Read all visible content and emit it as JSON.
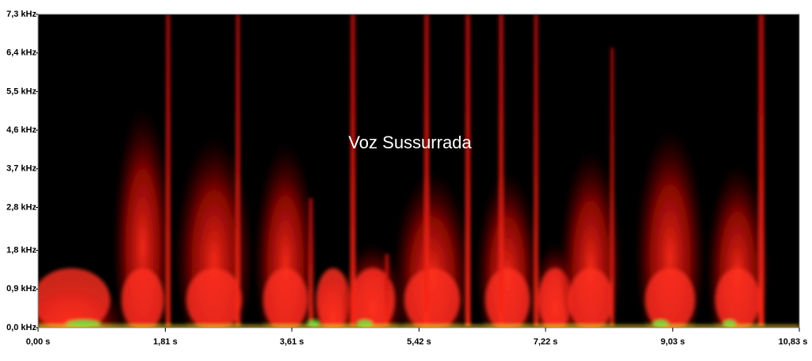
{
  "chart_data": {
    "type": "spectrogram",
    "title": "Voz Sussurrada",
    "xlim": [
      0,
      10.83
    ],
    "ylim": [
      0,
      7.3
    ],
    "xticks": [
      {
        "value": 0,
        "label": "0,00 s"
      },
      {
        "value": 1.81,
        "label": "1,81 s"
      },
      {
        "value": 3.61,
        "label": "3,61 s"
      },
      {
        "value": 5.42,
        "label": "5,42 s"
      },
      {
        "value": 7.22,
        "label": "7,22 s"
      },
      {
        "value": 9.03,
        "label": "9,03 s"
      },
      {
        "value": 10.83,
        "label": "10,83 s"
      }
    ],
    "yticks": [
      {
        "value": 0,
        "label": "0,0 kHz"
      },
      {
        "value": 0.9,
        "label": "0,9 kHz"
      },
      {
        "value": 1.8,
        "label": "1,8 kHz"
      },
      {
        "value": 2.8,
        "label": "2,8 kHz"
      },
      {
        "value": 3.7,
        "label": "3,7 kHz"
      },
      {
        "value": 4.6,
        "label": "4,6 kHz"
      },
      {
        "value": 5.5,
        "label": "5,5 kHz"
      },
      {
        "value": 6.4,
        "label": "6,4 kHz"
      },
      {
        "value": 7.3,
        "label": "7,3 kHz"
      }
    ]
  }
}
